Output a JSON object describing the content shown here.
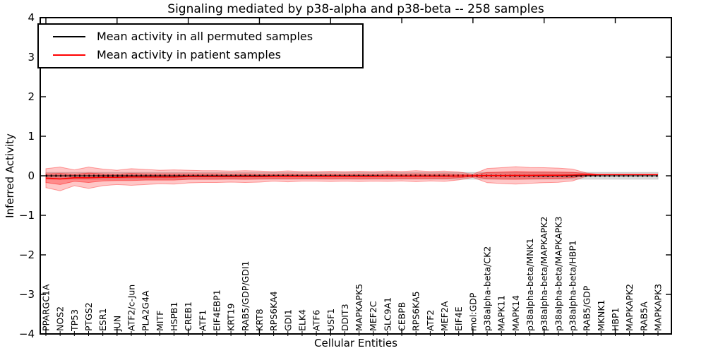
{
  "title": "Signaling mediated by p38-alpha and p38-beta -- 258 samples",
  "legend": {
    "items": [
      {
        "label": "Mean activity in all permuted samples",
        "color": "#000000"
      },
      {
        "label": "Mean activity in patient samples",
        "color": "#ff0000"
      }
    ],
    "position": "upper left"
  },
  "chart_data": {
    "type": "line",
    "title": "Signaling mediated by p38-alpha and p38-beta -- 258 samples",
    "xlabel": "Cellular Entities",
    "ylabel": "Inferred Activity",
    "ylim": [
      -4,
      4
    ],
    "yticks": [
      4,
      3,
      2,
      1,
      0,
      -1,
      -2,
      -3,
      -4
    ],
    "y_tick_labels": [
      "4",
      "3",
      "2",
      "1",
      "0",
      "−1",
      "−2",
      "−3",
      "−4"
    ],
    "x_major_tick_every": 5,
    "grid": false,
    "legend_position": "upper left",
    "categories": [
      "PPARGC1A",
      "NOS2",
      "TP53",
      "PTGS2",
      "ESR1",
      "JUN",
      "ATF2/c-Jun",
      "PLA2G4A",
      "MITF",
      "HSPB1",
      "CREB1",
      "ATF1",
      "EIF4EBP1",
      "KRT19",
      "RAB5/GDP/GDI1",
      "KRT8",
      "RPS6KA4",
      "GDI1",
      "ELK4",
      "ATF6",
      "USF1",
      "DDIT3",
      "MAPKAPK5",
      "MEF2C",
      "SLC9A1",
      "CEBPB",
      "RPS6KA5",
      "ATF2",
      "MEF2A",
      "EIF4E",
      "mol:GDP",
      "p38alpha-beta/CK2",
      "MAPK11",
      "MAPK14",
      "p38alpha-beta/MNK1",
      "p38alpha-beta/MAPKAPK2",
      "p38alpha-beta/MAPKAPK3",
      "p38alpha-beta/HBP1",
      "RAB5/GDP",
      "MKNK1",
      "HBP1",
      "MAPKAPK2",
      "RAB5A",
      "MAPKAPK3"
    ],
    "series": [
      {
        "name": "Mean activity in all permuted samples",
        "color": "#000000",
        "style": {
          "dotted_markers": true
        },
        "values": [
          0,
          0,
          0,
          0,
          0,
          0,
          0,
          0,
          0,
          0,
          0,
          0,
          0,
          0,
          0,
          0,
          0,
          0,
          0,
          0,
          0,
          0,
          0,
          0,
          0,
          0,
          0,
          0,
          0,
          0,
          0,
          0,
          0,
          0,
          0,
          0,
          0,
          0,
          0,
          0,
          0,
          0,
          0,
          0
        ]
      },
      {
        "name": "Mean activity in patient samples",
        "color": "#ff0000",
        "style": {
          "dotted_markers": false
        },
        "values": [
          -0.06,
          -0.08,
          -0.05,
          -0.05,
          -0.04,
          -0.04,
          -0.03,
          -0.03,
          -0.03,
          -0.03,
          -0.02,
          -0.02,
          -0.02,
          -0.02,
          -0.02,
          -0.02,
          -0.015,
          -0.015,
          -0.015,
          -0.015,
          -0.015,
          -0.015,
          -0.015,
          -0.015,
          -0.01,
          -0.01,
          -0.01,
          -0.01,
          -0.01,
          -0.005,
          0,
          0.005,
          0.005,
          0.01,
          0.01,
          0.015,
          0.015,
          0.02,
          0.03,
          0.03,
          0.03,
          0.03,
          0.03,
          0.03
        ]
      }
    ],
    "bands": [
      {
        "name": "permuted-std",
        "color": "#a0a0a0",
        "opacity": 0.35,
        "center_series": 0,
        "half_widths": [
          0.085,
          0.085,
          0.085,
          0.085,
          0.085,
          0.085,
          0.085,
          0.085,
          0.085,
          0.085,
          0.085,
          0.085,
          0.085,
          0.085,
          0.085,
          0.085,
          0.085,
          0.085,
          0.085,
          0.085,
          0.085,
          0.085,
          0.085,
          0.085,
          0.085,
          0.085,
          0.085,
          0.085,
          0.085,
          0.085,
          0.085,
          0.085,
          0.085,
          0.085,
          0.085,
          0.085,
          0.085,
          0.085,
          0.085,
          0.085,
          0.085,
          0.085,
          0.085,
          0.085
        ]
      },
      {
        "name": "patient-std-outer",
        "color": "#ff0000",
        "opacity": 0.22,
        "center_series": 1,
        "half_widths": [
          0.24,
          0.3,
          0.2,
          0.27,
          0.21,
          0.18,
          0.21,
          0.19,
          0.17,
          0.18,
          0.16,
          0.15,
          0.15,
          0.14,
          0.15,
          0.14,
          0.12,
          0.14,
          0.12,
          0.12,
          0.13,
          0.12,
          0.13,
          0.12,
          0.13,
          0.12,
          0.14,
          0.12,
          0.13,
          0.1,
          0.04,
          0.18,
          0.2,
          0.22,
          0.2,
          0.19,
          0.18,
          0.15,
          0.04,
          0,
          0,
          0,
          0,
          0
        ]
      },
      {
        "name": "patient-std-inner",
        "color": "#ff0000",
        "opacity": 0.3,
        "center_series": 1,
        "half_widths": [
          0.11,
          0.14,
          0.09,
          0.12,
          0.09,
          0.08,
          0.09,
          0.08,
          0.08,
          0.08,
          0.07,
          0.07,
          0.07,
          0.06,
          0.07,
          0.06,
          0.055,
          0.06,
          0.055,
          0.055,
          0.06,
          0.055,
          0.06,
          0.055,
          0.06,
          0.055,
          0.06,
          0.055,
          0.06,
          0.045,
          0.02,
          0.08,
          0.09,
          0.1,
          0.09,
          0.085,
          0.08,
          0.07,
          0.02,
          0,
          0,
          0,
          0,
          0
        ]
      }
    ]
  }
}
